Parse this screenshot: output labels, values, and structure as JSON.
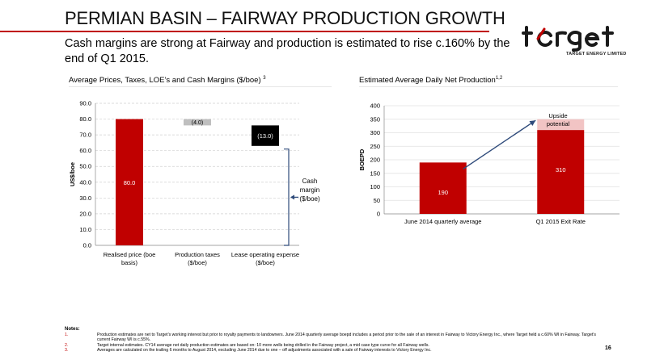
{
  "header": {
    "title": "PERMIAN BASIN – FAIRWAY PRODUCTION GROWTH",
    "subtitle": "Cash margins are strong at Fairway and production is estimated to rise c.160% by the end of Q1 2015."
  },
  "logo": {
    "wordmark": "target",
    "subtext": "TARGET ENERGY LIMITED",
    "color": "#1a1a1a",
    "accent": "#c00000"
  },
  "left_chart": {
    "heading": "Average Prices, Taxes, LOE’s and Cash Margins ($/boe)",
    "heading_sup": "3",
    "annotation_line1": "Cash",
    "annotation_line2": "margin",
    "annotation_line3": "($/boe)"
  },
  "right_chart": {
    "heading": "Estimated Average Daily Net Production",
    "heading_sup": "1,2",
    "upside_line1": "Upside",
    "upside_line2": "potential"
  },
  "chart_data": [
    {
      "type": "bar",
      "title": "Average Prices, Taxes, LOE’s and Cash Margins ($/boe)",
      "ylabel": "US$/boe",
      "ylim": [
        0,
        90
      ],
      "yticks": [
        "0.0",
        "10.0",
        "20.0",
        "30.0",
        "40.0",
        "50.0",
        "60.0",
        "70.0",
        "80.0",
        "90.0"
      ],
      "categories": [
        [
          "Realised price (boe",
          "basis)"
        ],
        [
          "Production taxes",
          "($/boe)"
        ],
        [
          "Lease operating expense",
          "($/boe)"
        ]
      ],
      "values": [
        80.0,
        -4.0,
        -13.0
      ],
      "data_labels": [
        "80.0",
        "(4.0)",
        "(13.0)"
      ],
      "colors": [
        "#c00000",
        "#bfbfbf",
        "#000000"
      ]
    },
    {
      "type": "bar",
      "title": "Estimated Average Daily Net Production",
      "ylabel": "BOEPD",
      "ylim": [
        0,
        400
      ],
      "yticks": [
        "0",
        "50",
        "100",
        "150",
        "200",
        "250",
        "300",
        "350",
        "400"
      ],
      "categories": [
        "June 2014 quarterly average",
        "Q1 2015 Exit Rate"
      ],
      "values": [
        190,
        310
      ],
      "upside_value": 350,
      "data_labels": [
        "190",
        "310"
      ],
      "colors": [
        "#c00000",
        "#f2c4c4"
      ]
    }
  ],
  "notes": {
    "heading": "Notes:",
    "items": [
      {
        "num": "1.",
        "text": "Production estimates are net to Target’s working interest but prior to royalty payments to landowners. June 2014 quarterly average boepd includes a period prior to the sale of an interest in Fairway to Victory Energy Inc., where Target held a c.60% WI in Fairway. Target’s current Fairway WI is c.55%."
      },
      {
        "num": "2.",
        "text": "Target internal estimates. CY14 average net daily production estimates are based on: 10 more wells being drilled in the Fairway project, a mid case type curve for all Fairway wells."
      },
      {
        "num": "3.",
        "text": "Averages are calculated on the trailing 6 months to August 2014, excluding June 2014 due to one – off adjustments associated with a sale of Fairway interests to Victory Energy Inc."
      }
    ]
  },
  "page_number": "16"
}
